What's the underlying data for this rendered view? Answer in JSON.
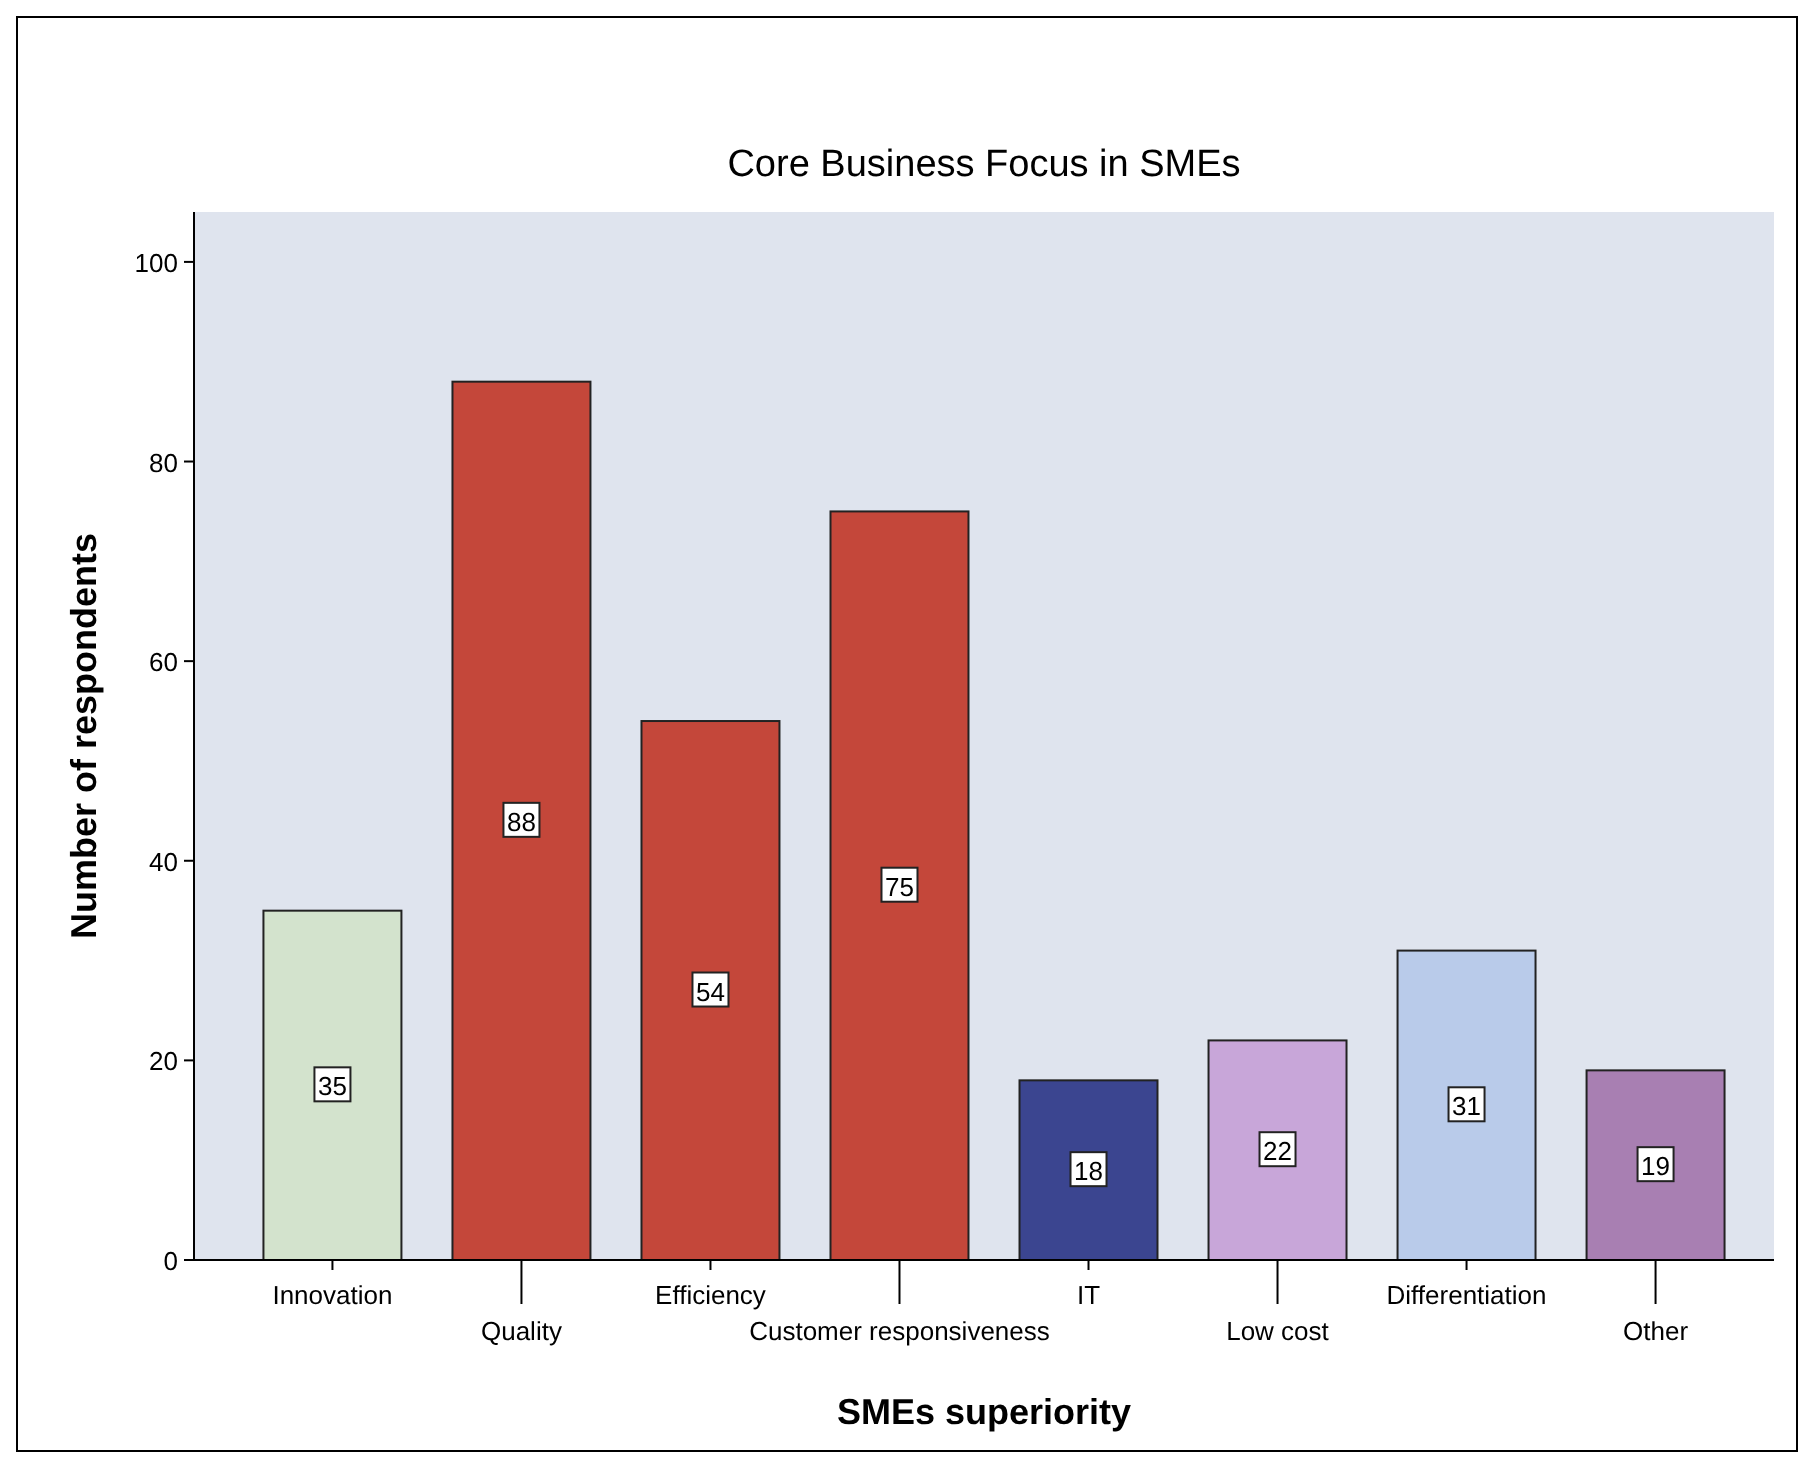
{
  "chart_data": {
    "type": "bar",
    "title": "Core Business Focus in SMEs",
    "xlabel": "SMEs superiority",
    "ylabel": "Number of respondents",
    "categories": [
      "Innovation",
      "Quality",
      "Efficiency",
      "Customer responsiveness",
      "IT",
      "Low cost",
      "Differentiation",
      "Other"
    ],
    "values": [
      35,
      88,
      54,
      75,
      18,
      22,
      31,
      19
    ],
    "colors": [
      "#d3e3cd",
      "#c4473a",
      "#c4473a",
      "#c4473a",
      "#3b4590",
      "#c8a6d9",
      "#b9cbea",
      "#a87fb2"
    ],
    "ylim": [
      0,
      105
    ],
    "yticks": [
      0,
      20,
      40,
      60,
      80,
      100
    ],
    "data_labels": true,
    "grid": false
  }
}
